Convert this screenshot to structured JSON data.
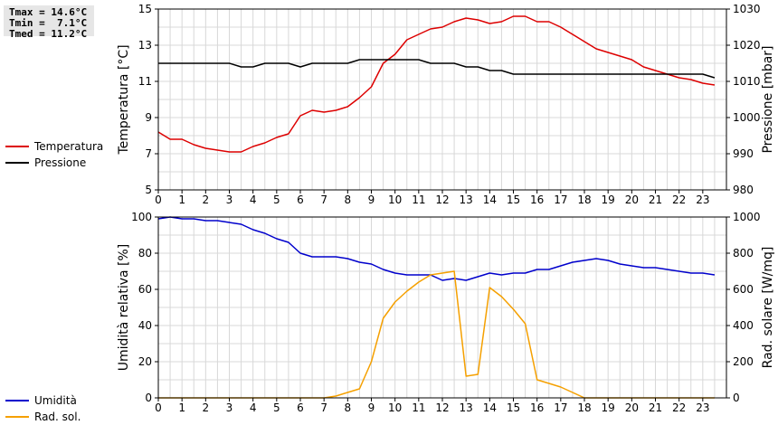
{
  "stats": {
    "tmax": "Tmax = 14.6°C",
    "tmin": "Tmin =  7.1°C",
    "tmed": "Tmed = 11.2°C"
  },
  "chart_data": [
    {
      "type": "line",
      "ylabel_left": "Temperatura [°C]",
      "ylabel_right": "Pressione [mbar]",
      "xlim": [
        0,
        24
      ],
      "ylim_left": [
        5,
        15
      ],
      "ylim_right": [
        980,
        1030
      ],
      "x_ticks": [
        0,
        1,
        2,
        3,
        4,
        5,
        6,
        7,
        8,
        9,
        10,
        11,
        12,
        13,
        14,
        15,
        16,
        17,
        18,
        19,
        20,
        21,
        22,
        23
      ],
      "y_ticks_left": [
        5,
        7,
        9,
        11,
        13,
        15
      ],
      "y_ticks_right": [
        980,
        990,
        1000,
        1010,
        1020,
        1030
      ],
      "grid": true,
      "legend_position": "left",
      "series": [
        {
          "name": "Temperatura",
          "axis": "left",
          "color": "#dd0000",
          "x": [
            0,
            0.5,
            1,
            1.5,
            2,
            2.5,
            3,
            3.5,
            4,
            4.5,
            5,
            5.5,
            6,
            6.5,
            7,
            7.5,
            8,
            8.5,
            9,
            9.5,
            10,
            10.5,
            11,
            11.5,
            12,
            12.5,
            13,
            13.5,
            14,
            14.5,
            15,
            15.5,
            16,
            16.5,
            17,
            17.5,
            18,
            18.5,
            19,
            19.5,
            20,
            20.5,
            21,
            21.5,
            22,
            22.5,
            23,
            23.5
          ],
          "y": [
            8.2,
            7.8,
            7.8,
            7.5,
            7.3,
            7.2,
            7.1,
            7.1,
            7.4,
            7.6,
            7.9,
            8.1,
            9.1,
            9.4,
            9.3,
            9.4,
            9.6,
            10.1,
            10.7,
            12.0,
            12.5,
            13.3,
            13.6,
            13.9,
            14.0,
            14.3,
            14.5,
            14.4,
            14.2,
            14.3,
            14.6,
            14.6,
            14.3,
            14.3,
            14.0,
            13.6,
            13.2,
            12.8,
            12.6,
            12.4,
            12.2,
            11.8,
            11.6,
            11.4,
            11.2,
            11.1,
            10.9,
            10.8
          ]
        },
        {
          "name": "Pressione",
          "axis": "right",
          "color": "#000000",
          "x": [
            0,
            0.5,
            1,
            1.5,
            2,
            2.5,
            3,
            3.5,
            4,
            4.5,
            5,
            5.5,
            6,
            6.5,
            7,
            7.5,
            8,
            8.5,
            9,
            9.5,
            10,
            10.5,
            11,
            11.5,
            12,
            12.5,
            13,
            13.5,
            14,
            14.5,
            15,
            15.5,
            16,
            16.5,
            17,
            17.5,
            18,
            18.5,
            19,
            19.5,
            20,
            20.5,
            21,
            21.5,
            22,
            22.5,
            23,
            23.5
          ],
          "y": [
            1015,
            1015,
            1015,
            1015,
            1015,
            1015,
            1015,
            1014,
            1014,
            1015,
            1015,
            1015,
            1014,
            1015,
            1015,
            1015,
            1015,
            1016,
            1016,
            1016,
            1016,
            1016,
            1016,
            1015,
            1015,
            1015,
            1014,
            1014,
            1013,
            1013,
            1012,
            1012,
            1012,
            1012,
            1012,
            1012,
            1012,
            1012,
            1012,
            1012,
            1012,
            1012,
            1012,
            1012,
            1012,
            1012,
            1012,
            1011
          ]
        }
      ]
    },
    {
      "type": "line",
      "ylabel_left": "Umidità relativa [%]",
      "ylabel_right": "Rad. solare [W/mq]",
      "xlim": [
        0,
        24
      ],
      "ylim_left": [
        0,
        100
      ],
      "ylim_right": [
        0,
        1000
      ],
      "x_ticks": [
        0,
        1,
        2,
        3,
        4,
        5,
        6,
        7,
        8,
        9,
        10,
        11,
        12,
        13,
        14,
        15,
        16,
        17,
        18,
        19,
        20,
        21,
        22,
        23
      ],
      "y_ticks_left": [
        0,
        20,
        40,
        60,
        80,
        100
      ],
      "y_ticks_right": [
        0,
        200,
        400,
        600,
        800,
        1000
      ],
      "grid": true,
      "legend_position": "left",
      "series": [
        {
          "name": "Umidità",
          "axis": "left",
          "color": "#0000cc",
          "x": [
            0,
            0.5,
            1,
            1.5,
            2,
            2.5,
            3,
            3.5,
            4,
            4.5,
            5,
            5.5,
            6,
            6.5,
            7,
            7.5,
            8,
            8.5,
            9,
            9.5,
            10,
            10.5,
            11,
            11.5,
            12,
            12.5,
            13,
            13.5,
            14,
            14.5,
            15,
            15.5,
            16,
            16.5,
            17,
            17.5,
            18,
            18.5,
            19,
            19.5,
            20,
            20.5,
            21,
            21.5,
            22,
            22.5,
            23,
            23.5
          ],
          "y": [
            99,
            100,
            99,
            99,
            98,
            98,
            97,
            96,
            93,
            91,
            88,
            86,
            80,
            78,
            78,
            78,
            77,
            75,
            74,
            71,
            69,
            68,
            68,
            68,
            65,
            66,
            65,
            67,
            69,
            68,
            69,
            69,
            71,
            71,
            73,
            75,
            76,
            77,
            76,
            74,
            73,
            72,
            72,
            71,
            70,
            69,
            69,
            68
          ]
        },
        {
          "name": "Rad. sol.",
          "axis": "right",
          "color": "#f5a000",
          "x": [
            0,
            0.5,
            1,
            1.5,
            2,
            2.5,
            3,
            3.5,
            4,
            4.5,
            5,
            5.5,
            6,
            6.5,
            7,
            7.5,
            8,
            8.5,
            9,
            9.5,
            10,
            10.5,
            11,
            11.5,
            12,
            12.5,
            13,
            13.5,
            14,
            14.5,
            15,
            15.5,
            16,
            16.5,
            17,
            17.5,
            18,
            18.5,
            19,
            19.5,
            20,
            20.5,
            21,
            21.5,
            22,
            22.5,
            23,
            23.5
          ],
          "y": [
            0,
            0,
            0,
            0,
            0,
            0,
            0,
            0,
            0,
            0,
            0,
            0,
            0,
            0,
            0,
            10,
            30,
            50,
            200,
            440,
            530,
            590,
            640,
            680,
            690,
            700,
            120,
            130,
            610,
            560,
            490,
            410,
            100,
            80,
            60,
            30,
            0,
            0,
            0,
            0,
            0,
            0,
            0,
            0,
            0,
            0,
            0,
            0
          ]
        }
      ]
    }
  ]
}
